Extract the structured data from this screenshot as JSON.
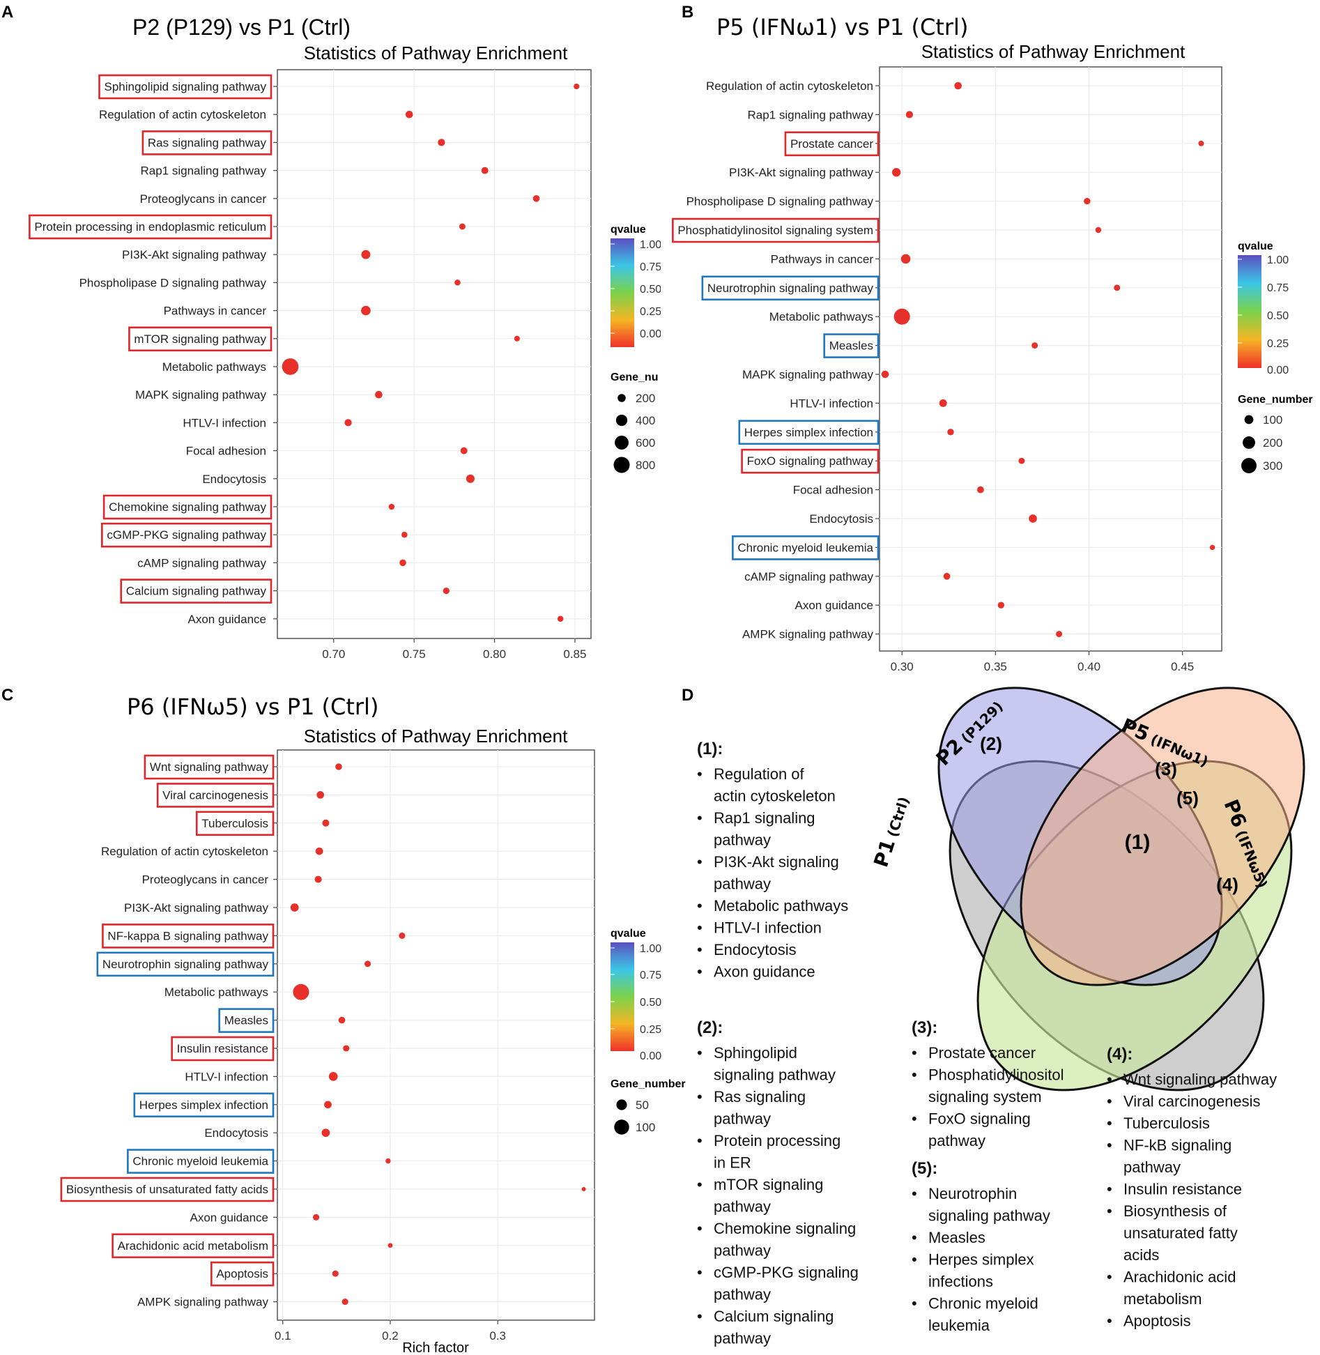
{
  "panels": [
    {
      "letter": "A",
      "title": "P2 (P129) vs P1 (Ctrl)"
    },
    {
      "letter": "B",
      "title": "P5 (IFNω1) vs P1 (Ctrl)"
    },
    {
      "letter": "C",
      "title": "P6 (IFNω5) vs P1 (Ctrl)"
    },
    {
      "letter": "D"
    }
  ],
  "chart_data": [
    {
      "type": "scatter",
      "title": "Statistics of Pathway Enrichment",
      "xlabel": "",
      "xlim": [
        0.665,
        0.86
      ],
      "xticks": [
        "0.70",
        "0.75",
        "0.80",
        "0.85"
      ],
      "xtick_values": [
        0.7,
        0.75,
        0.8,
        0.85
      ],
      "color_legend": {
        "title": "qvalue",
        "labels": [
          "1.00",
          "0.75",
          "0.50",
          "0.25",
          "0.00"
        ]
      },
      "size_legend": {
        "title": "Gene_nu",
        "labels": [
          "200",
          "400",
          "600",
          "800"
        ],
        "values": [
          200,
          400,
          600,
          800
        ]
      },
      "pathways": [
        {
          "name": "Sphingolipid signaling pathway",
          "rich": 0.851,
          "genes": 100,
          "box": "red"
        },
        {
          "name": "Regulation of actin cytoskeleton",
          "rich": 0.747,
          "genes": 170,
          "box": ""
        },
        {
          "name": "Ras signaling pathway",
          "rich": 0.767,
          "genes": 160,
          "box": "red"
        },
        {
          "name": "Rap1 signaling pathway",
          "rich": 0.794,
          "genes": 150,
          "box": ""
        },
        {
          "name": "Proteoglycans in cancer",
          "rich": 0.826,
          "genes": 140,
          "box": ""
        },
        {
          "name": "Protein processing in endoplasmic reticulum",
          "rich": 0.78,
          "genes": 120,
          "box": "red"
        },
        {
          "name": "PI3K-Akt signaling pathway",
          "rich": 0.72,
          "genes": 250,
          "box": ""
        },
        {
          "name": "Phospholipase D signaling pathway",
          "rich": 0.777,
          "genes": 110,
          "box": ""
        },
        {
          "name": "Pathways in cancer",
          "rich": 0.72,
          "genes": 280,
          "box": ""
        },
        {
          "name": "mTOR signaling pathway",
          "rich": 0.814,
          "genes": 100,
          "box": "red"
        },
        {
          "name": "Metabolic pathways",
          "rich": 0.673,
          "genes": 850,
          "box": ""
        },
        {
          "name": "MAPK signaling pathway",
          "rich": 0.728,
          "genes": 170,
          "box": ""
        },
        {
          "name": "HTLV-I infection",
          "rich": 0.709,
          "genes": 160,
          "box": ""
        },
        {
          "name": "Focal adhesion",
          "rich": 0.781,
          "genes": 150,
          "box": ""
        },
        {
          "name": "Endocytosis",
          "rich": 0.785,
          "genes": 220,
          "box": ""
        },
        {
          "name": "Chemokine signaling pathway",
          "rich": 0.736,
          "genes": 110,
          "box": "red"
        },
        {
          "name": "cGMP-PKG signaling pathway",
          "rich": 0.744,
          "genes": 110,
          "box": "red"
        },
        {
          "name": "cAMP signaling pathway",
          "rich": 0.743,
          "genes": 140,
          "box": ""
        },
        {
          "name": "Calcium signaling pathway",
          "rich": 0.77,
          "genes": 130,
          "box": "red"
        },
        {
          "name": "Axon guidance",
          "rich": 0.841,
          "genes": 110,
          "box": ""
        }
      ]
    },
    {
      "type": "scatter",
      "title": "Statistics of Pathway Enrichment",
      "xlabel": "",
      "xlim": [
        0.288,
        0.471
      ],
      "xticks": [
        "0.30",
        "0.35",
        "0.40",
        "0.45"
      ],
      "xtick_values": [
        0.3,
        0.35,
        0.4,
        0.45
      ],
      "color_legend": {
        "title": "qvalue",
        "labels": [
          "1.00",
          "0.75",
          "0.50",
          "0.25",
          "0.00"
        ]
      },
      "size_legend": {
        "title": "Gene_number",
        "labels": [
          "100",
          "200",
          "300"
        ],
        "values": [
          100,
          200,
          300
        ]
      },
      "pathways": [
        {
          "name": "Regulation of actin cytoskeleton",
          "rich": 0.33,
          "genes": 70,
          "box": ""
        },
        {
          "name": "Rap1 signaling pathway",
          "rich": 0.304,
          "genes": 65,
          "box": ""
        },
        {
          "name": "Prostate cancer",
          "rich": 0.46,
          "genes": 40,
          "box": "red"
        },
        {
          "name": "PI3K-Akt signaling pathway",
          "rich": 0.297,
          "genes": 95,
          "box": ""
        },
        {
          "name": "Phospholipase D signaling pathway",
          "rich": 0.399,
          "genes": 55,
          "box": ""
        },
        {
          "name": "Phosphatidylinositol signaling system",
          "rich": 0.405,
          "genes": 45,
          "box": "red"
        },
        {
          "name": "Pathways in cancer",
          "rich": 0.302,
          "genes": 115,
          "box": ""
        },
        {
          "name": "Neurotrophin signaling pathway",
          "rich": 0.415,
          "genes": 50,
          "box": "blue"
        },
        {
          "name": "Metabolic pathways",
          "rich": 0.3,
          "genes": 330,
          "box": ""
        },
        {
          "name": "Measles",
          "rich": 0.371,
          "genes": 50,
          "box": "blue"
        },
        {
          "name": "MAPK signaling pathway",
          "rich": 0.291,
          "genes": 70,
          "box": ""
        },
        {
          "name": "HTLV-I infection",
          "rich": 0.322,
          "genes": 75,
          "box": ""
        },
        {
          "name": "Herpes simplex infection",
          "rich": 0.326,
          "genes": 55,
          "box": "blue"
        },
        {
          "name": "FoxO signaling pathway",
          "rich": 0.364,
          "genes": 50,
          "box": "red"
        },
        {
          "name": "Focal adhesion",
          "rich": 0.342,
          "genes": 60,
          "box": ""
        },
        {
          "name": "Endocytosis",
          "rich": 0.37,
          "genes": 85,
          "box": ""
        },
        {
          "name": "Chronic myeloid leukemia",
          "rich": 0.466,
          "genes": 35,
          "box": "blue"
        },
        {
          "name": "cAMP signaling pathway",
          "rich": 0.324,
          "genes": 60,
          "box": ""
        },
        {
          "name": "Axon guidance",
          "rich": 0.353,
          "genes": 55,
          "box": ""
        },
        {
          "name": "AMPK signaling pathway",
          "rich": 0.384,
          "genes": 50,
          "box": ""
        }
      ]
    },
    {
      "type": "scatter",
      "title": "Statistics of Pathway Enrichment",
      "xlabel": "Rich factor",
      "xlim": [
        0.095,
        0.39
      ],
      "xticks": [
        "0.1",
        "0.2",
        "0.3"
      ],
      "xtick_values": [
        0.1,
        0.2,
        0.3
      ],
      "color_legend": {
        "title": "qvalue",
        "labels": [
          "1.00",
          "0.75",
          "0.50",
          "0.25",
          "0.00"
        ]
      },
      "size_legend": {
        "title": "Gene_number",
        "labels": [
          "50",
          "100"
        ],
        "values": [
          50,
          100
        ]
      },
      "pathways": [
        {
          "name": "Wnt signaling pathway",
          "rich": 0.152,
          "genes": 20,
          "box": "red"
        },
        {
          "name": "Viral carcinogenesis",
          "rich": 0.135,
          "genes": 25,
          "box": "red"
        },
        {
          "name": "Tuberculosis",
          "rich": 0.14,
          "genes": 22,
          "box": "red"
        },
        {
          "name": "Regulation of actin cytoskeleton",
          "rich": 0.134,
          "genes": 25,
          "box": ""
        },
        {
          "name": "Proteoglycans in cancer",
          "rich": 0.133,
          "genes": 22,
          "box": ""
        },
        {
          "name": "PI3K-Akt signaling pathway",
          "rich": 0.111,
          "genes": 30,
          "box": ""
        },
        {
          "name": "NF-kappa B signaling pathway",
          "rich": 0.211,
          "genes": 18,
          "box": "red"
        },
        {
          "name": "Neurotrophin signaling pathway",
          "rich": 0.179,
          "genes": 18,
          "box": "blue"
        },
        {
          "name": "Metabolic pathways",
          "rich": 0.117,
          "genes": 115,
          "box": ""
        },
        {
          "name": "Measles",
          "rich": 0.155,
          "genes": 20,
          "box": "blue"
        },
        {
          "name": "Insulin resistance",
          "rich": 0.159,
          "genes": 18,
          "box": "red"
        },
        {
          "name": "HTLV-I infection",
          "rich": 0.147,
          "genes": 35,
          "box": ""
        },
        {
          "name": "Herpes simplex infection",
          "rich": 0.142,
          "genes": 25,
          "box": "blue"
        },
        {
          "name": "Endocytosis",
          "rich": 0.14,
          "genes": 30,
          "box": ""
        },
        {
          "name": "Chronic myeloid leukemia",
          "rich": 0.198,
          "genes": 12,
          "box": "blue"
        },
        {
          "name": "Biosynthesis of unsaturated fatty acids",
          "rich": 0.38,
          "genes": 8,
          "box": "red"
        },
        {
          "name": "Axon guidance",
          "rich": 0.131,
          "genes": 18,
          "box": ""
        },
        {
          "name": "Arachidonic acid metabolism",
          "rich": 0.2,
          "genes": 10,
          "box": "red"
        },
        {
          "name": "Apoptosis",
          "rich": 0.149,
          "genes": 18,
          "box": "red"
        },
        {
          "name": "AMPK signaling pathway",
          "rich": 0.158,
          "genes": 18,
          "box": ""
        }
      ]
    }
  ],
  "venn": {
    "sets": [
      {
        "label": "P1",
        "sub": "(Ctrl)"
      },
      {
        "label": "P2",
        "sub": "(P129)"
      },
      {
        "label": "P5",
        "sub": "(IFNω1)"
      },
      {
        "label": "P6",
        "sub": "(IFNω5)"
      }
    ],
    "region_labels": [
      "(1)",
      "(2)",
      "(3)",
      "(4)",
      "(5)"
    ],
    "lists": [
      {
        "head": "(1):",
        "items": [
          "Regulation of  actin cytoskeleton",
          "Rap1 signaling pathway",
          "PI3K-Akt signaling pathway",
          "Metabolic pathways",
          "HTLV-I infection",
          "Endocytosis",
          "Axon guidance"
        ]
      },
      {
        "head": "(2):",
        "items": [
          "Sphingolipid signaling pathway",
          "Ras signaling pathway",
          "Protein processing in ER",
          "mTOR signaling pathway",
          "Chemokine signaling pathway",
          "cGMP-PKG signaling pathway",
          "Calcium signaling pathway"
        ]
      },
      {
        "head": "(3):",
        "items": [
          "Prostate cancer",
          "Phosphatidylinositol signaling system",
          "FoxO signaling pathway"
        ]
      },
      {
        "head": "(5):",
        "items": [
          "Neurotrophin signaling pathway",
          "Measles",
          "Herpes simplex infections",
          "Chronic myeloid leukemia"
        ]
      },
      {
        "head": "(4):",
        "items": [
          "Wnt signaling pathway",
          "Viral carcinogenesis",
          "Tuberculosis",
          "NF-kB signaling pathway",
          "Insulin resistance",
          "Biosynthesis of unsaturated fatty acids",
          "Arachidonic acid metabolism",
          "Apoptosis"
        ]
      }
    ]
  },
  "colors": {
    "dot": "#e8302a",
    "red_box": "#e0262a",
    "blue_box": "#1f77c2",
    "venn_p1": "#bdbdbd",
    "venn_p2": "#9b9be3",
    "venn_p5": "#f7b38c",
    "venn_p6": "#c8e6a0"
  }
}
